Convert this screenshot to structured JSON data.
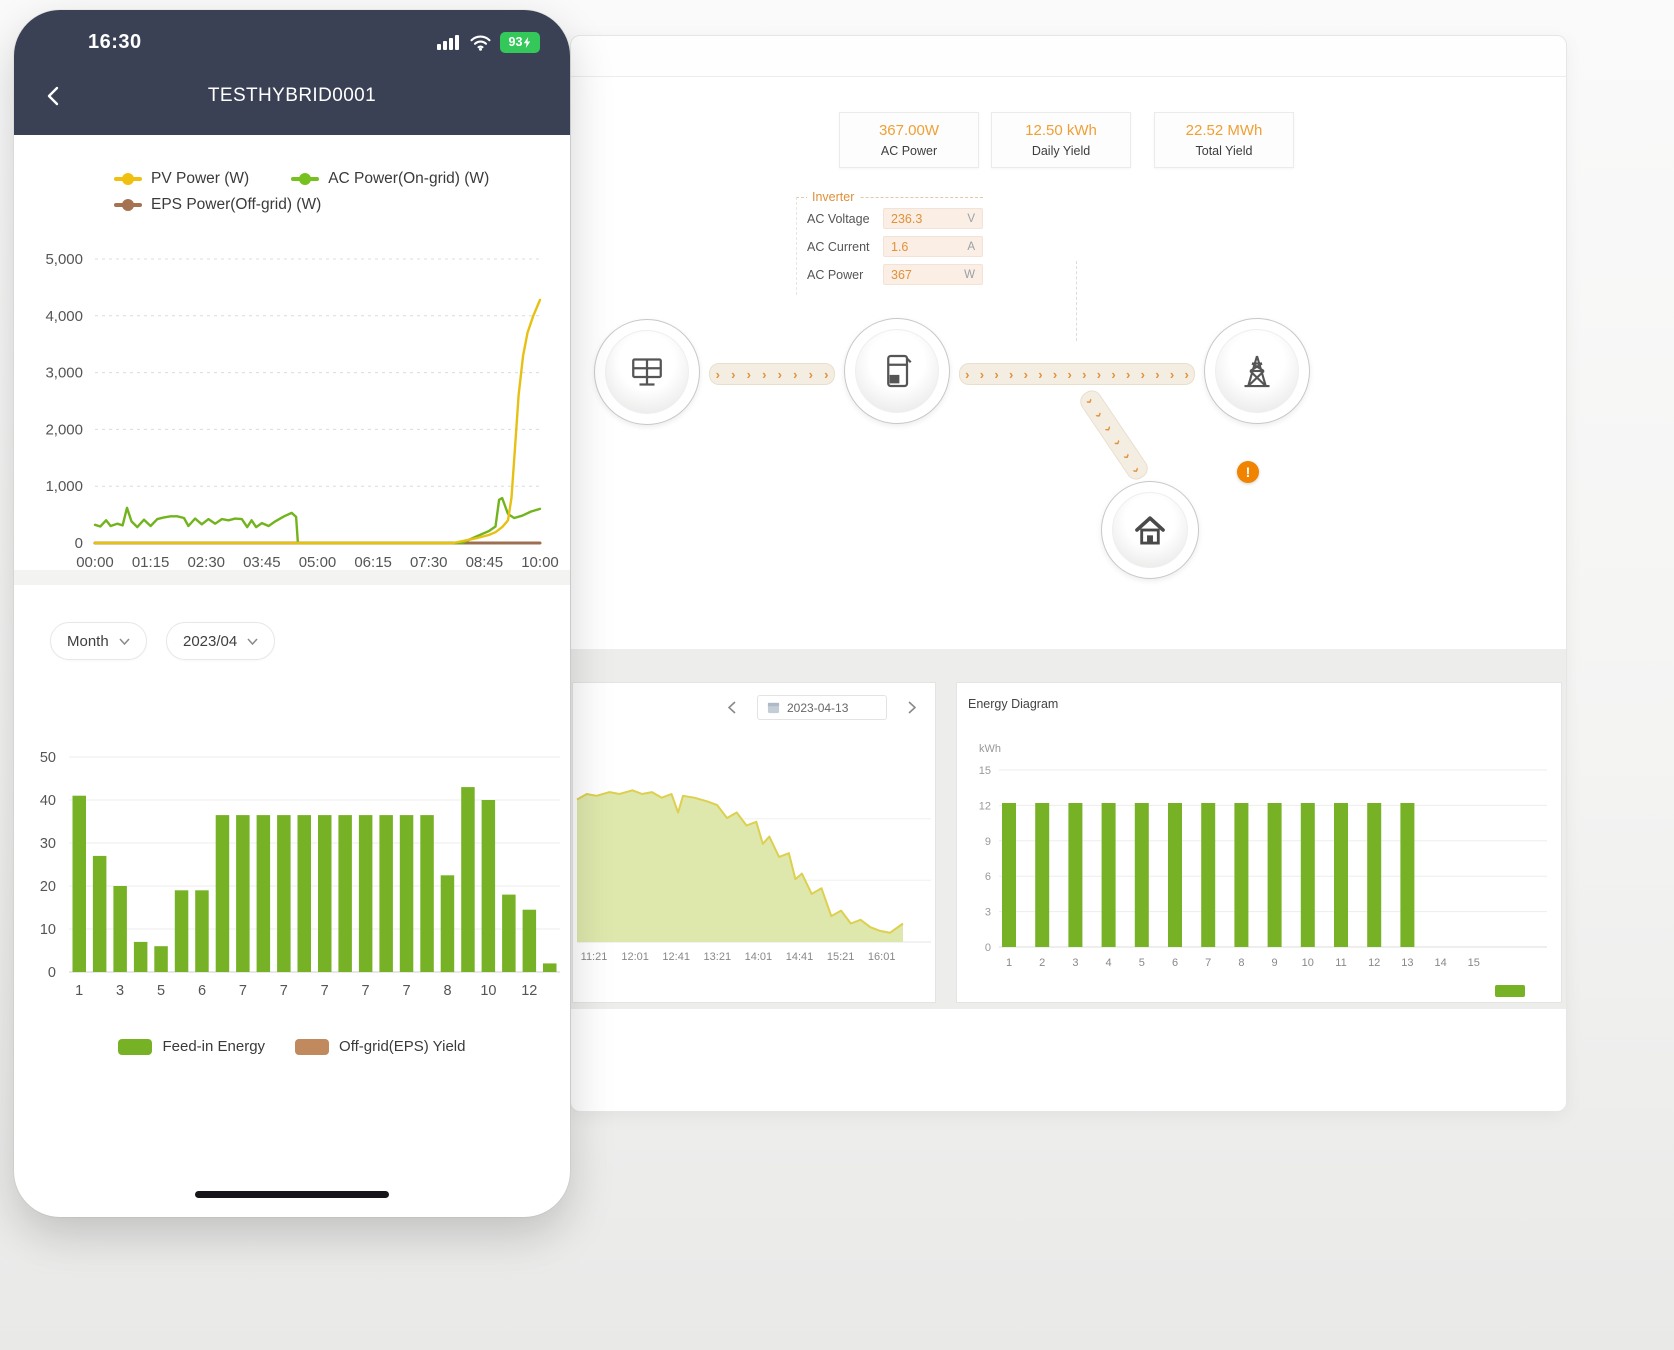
{
  "phone": {
    "status_bar": {
      "time": "16:30",
      "battery_percent": "93"
    },
    "nav": {
      "title": "TESTHYBRID0001"
    },
    "filters": {
      "period": "Month",
      "month": "2023/04"
    }
  },
  "desktop": {
    "stats": [
      {
        "value": "367.00W",
        "label": "AC Power"
      },
      {
        "value": "12.50 kWh",
        "label": "Daily Yield"
      },
      {
        "value": "22.52 MWh",
        "label": "Total Yield"
      }
    ],
    "inverter": {
      "title": "Inverter",
      "rows": [
        {
          "label": "AC Voltage",
          "value": "236.3",
          "unit": "V"
        },
        {
          "label": "AC Current",
          "value": "1.6",
          "unit": "A"
        },
        {
          "label": "AC Power",
          "value": "367",
          "unit": "W"
        }
      ]
    },
    "flow": {
      "warning": "!"
    },
    "daily_chart": {
      "date": "2023-04-13"
    },
    "energy_chart": {
      "title": "Energy Diagram",
      "unit": "kWh"
    }
  },
  "chart_data": [
    {
      "id": "pv_power_line",
      "type": "line",
      "x_ticks": [
        "00:00",
        "01:15",
        "02:30",
        "03:45",
        "05:00",
        "06:15",
        "07:30",
        "08:45",
        "10:00"
      ],
      "x_range": [
        0,
        10
      ],
      "ylim": [
        0,
        5000
      ],
      "y_ticks": [
        "0",
        "1,000",
        "2,000",
        "3,000",
        "4,000",
        "5,000"
      ],
      "series": [
        {
          "name": "EPS Power(Off-grid) (W)",
          "color": "#9c6f50",
          "points": [
            [
              0,
              0
            ],
            [
              10,
              0
            ]
          ]
        },
        {
          "name": "AC Power(On-grid) (W)",
          "color": "#72b41e",
          "points": [
            [
              0,
              320
            ],
            [
              0.12,
              290
            ],
            [
              0.25,
              400
            ],
            [
              0.35,
              300
            ],
            [
              0.5,
              340
            ],
            [
              0.62,
              310
            ],
            [
              0.72,
              620
            ],
            [
              0.82,
              380
            ],
            [
              0.95,
              280
            ],
            [
              1.1,
              410
            ],
            [
              1.25,
              300
            ],
            [
              1.4,
              420
            ],
            [
              1.55,
              450
            ],
            [
              1.7,
              470
            ],
            [
              1.85,
              470
            ],
            [
              2.0,
              440
            ],
            [
              2.1,
              300
            ],
            [
              2.25,
              430
            ],
            [
              2.4,
              330
            ],
            [
              2.55,
              420
            ],
            [
              2.7,
              340
            ],
            [
              2.85,
              420
            ],
            [
              3.0,
              400
            ],
            [
              3.15,
              430
            ],
            [
              3.3,
              420
            ],
            [
              3.42,
              280
            ],
            [
              3.52,
              400
            ],
            [
              3.62,
              280
            ],
            [
              3.75,
              350
            ],
            [
              3.9,
              300
            ],
            [
              4.05,
              380
            ],
            [
              4.25,
              470
            ],
            [
              4.42,
              530
            ],
            [
              4.52,
              460
            ],
            [
              4.56,
              0
            ],
            [
              8.25,
              0
            ],
            [
              8.55,
              110
            ],
            [
              8.85,
              210
            ],
            [
              9.0,
              290
            ],
            [
              9.08,
              760
            ],
            [
              9.15,
              790
            ],
            [
              9.28,
              510
            ],
            [
              9.42,
              440
            ],
            [
              9.6,
              480
            ],
            [
              9.8,
              555
            ],
            [
              10,
              600
            ]
          ]
        },
        {
          "name": "PV Power (W)",
          "color": "#e6c113",
          "points": [
            [
              0,
              0
            ],
            [
              8.05,
              0
            ],
            [
              8.3,
              40
            ],
            [
              8.6,
              90
            ],
            [
              8.85,
              140
            ],
            [
              9.0,
              190
            ],
            [
              9.15,
              280
            ],
            [
              9.28,
              400
            ],
            [
              9.36,
              800
            ],
            [
              9.44,
              1700
            ],
            [
              9.52,
              2600
            ],
            [
              9.62,
              3300
            ],
            [
              9.72,
              3700
            ],
            [
              9.85,
              4000
            ],
            [
              10,
              4280
            ]
          ]
        }
      ],
      "legend_order": [
        2,
        1,
        0
      ]
    },
    {
      "id": "monthly_yield_bars",
      "type": "bar",
      "ylim": [
        0,
        50
      ],
      "y_ticks": [
        "0",
        "10",
        "20",
        "30",
        "40",
        "50"
      ],
      "values": [
        41,
        27,
        20,
        7,
        6,
        19,
        19,
        36.5,
        36.5,
        36.5,
        36.5,
        36.5,
        36.5,
        36.5,
        36.5,
        36.5,
        36.5,
        36.5,
        22.5,
        43,
        40,
        18,
        14.5,
        2
      ],
      "x_tick_labels": [
        "1",
        "3",
        "5",
        "6",
        "7",
        "7",
        "7",
        "7",
        "7",
        "8",
        "10",
        "12"
      ],
      "bar_color": "#77b226",
      "legend": [
        {
          "label": "Feed-in Energy",
          "color": "#77b226"
        },
        {
          "label": "Off-grid(EPS) Yield",
          "color": "#c08a5e"
        }
      ]
    },
    {
      "id": "daily_power_area",
      "type": "area",
      "x_ticks": [
        "11:21",
        "12:01",
        "12:41",
        "13:21",
        "14:01",
        "14:41",
        "15:21",
        "16:01"
      ],
      "fill_color": "#dce7a8",
      "line_color": "#ddcf4f",
      "values_pct": [
        [
          0,
          77
        ],
        [
          0.03,
          80
        ],
        [
          0.06,
          79
        ],
        [
          0.1,
          81
        ],
        [
          0.13,
          80
        ],
        [
          0.17,
          82
        ],
        [
          0.2,
          80
        ],
        [
          0.23,
          81
        ],
        [
          0.26,
          78
        ],
        [
          0.29,
          80
        ],
        [
          0.31,
          70
        ],
        [
          0.325,
          79
        ],
        [
          0.36,
          78
        ],
        [
          0.4,
          76
        ],
        [
          0.43,
          74
        ],
        [
          0.46,
          67
        ],
        [
          0.49,
          70
        ],
        [
          0.52,
          63
        ],
        [
          0.55,
          65
        ],
        [
          0.57,
          53
        ],
        [
          0.59,
          57
        ],
        [
          0.62,
          46
        ],
        [
          0.65,
          48
        ],
        [
          0.67,
          34
        ],
        [
          0.69,
          37
        ],
        [
          0.72,
          26
        ],
        [
          0.75,
          29
        ],
        [
          0.78,
          14
        ],
        [
          0.81,
          17
        ],
        [
          0.84,
          10
        ],
        [
          0.87,
          12
        ],
        [
          0.9,
          8
        ],
        [
          0.93,
          6
        ],
        [
          0.96,
          5
        ],
        [
          1,
          10
        ]
      ]
    },
    {
      "id": "energy_diagram_bars",
      "type": "bar",
      "title": "Energy Diagram",
      "ylabel": "kWh",
      "ylim": [
        0,
        15
      ],
      "y_ticks": [
        "0",
        "3",
        "6",
        "9",
        "12",
        "15"
      ],
      "categories": [
        "1",
        "2",
        "3",
        "4",
        "5",
        "6",
        "7",
        "8",
        "9",
        "10",
        "11",
        "12",
        "13",
        "14",
        "15"
      ],
      "values": [
        12.2,
        12.2,
        12.2,
        12.2,
        12.2,
        12.2,
        12.2,
        12.2,
        12.2,
        12.2,
        12.2,
        12.2,
        12.2,
        null,
        null
      ],
      "bar_color": "#77b226"
    }
  ]
}
